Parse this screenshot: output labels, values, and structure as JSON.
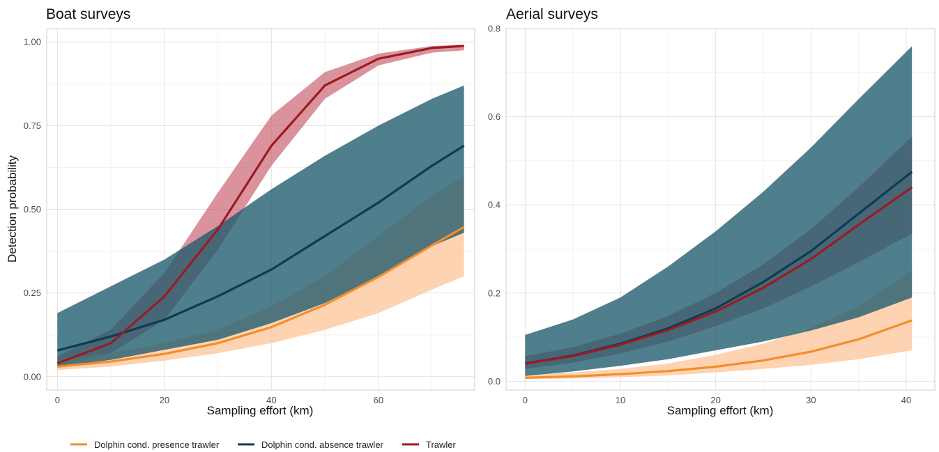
{
  "chart_data": [
    {
      "type": "line",
      "title": "Boat surveys",
      "xlabel": "Sampling effort (km)",
      "ylabel": "Detection probability",
      "xlim": [
        -2,
        78
      ],
      "ylim": [
        -0.04,
        1.04
      ],
      "xticks": [
        0,
        20,
        40,
        60
      ],
      "xtick_labels": [
        "0",
        "20",
        "40",
        "60"
      ],
      "yticks": [
        0,
        0.25,
        0.5,
        0.75,
        1.0
      ],
      "ytick_labels": [
        "0.00",
        "0.25",
        "0.50",
        "0.75",
        "1.00"
      ],
      "grid": true,
      "x": [
        0,
        10,
        20,
        30,
        40,
        50,
        60,
        70,
        76
      ],
      "series": [
        {
          "name": "Dolphin cond. presence trawler",
          "color": "#f28e2b",
          "ribbon_color": "#fdc9a0",
          "values": [
            0.03,
            0.045,
            0.068,
            0.1,
            0.148,
            0.215,
            0.298,
            0.392,
            0.447
          ],
          "lower": [
            0.02,
            0.03,
            0.048,
            0.07,
            0.1,
            0.14,
            0.19,
            0.26,
            0.3
          ],
          "upper": [
            0.05,
            0.07,
            0.1,
            0.14,
            0.21,
            0.3,
            0.42,
            0.54,
            0.6
          ]
        },
        {
          "name": "Dolphin cond. absence trawler",
          "color": "#0a3d52",
          "ribbon_color": "#1d5a6c",
          "values": [
            0.078,
            0.12,
            0.17,
            0.24,
            0.32,
            0.42,
            0.52,
            0.63,
            0.69
          ],
          "lower": [
            0.03,
            0.05,
            0.08,
            0.11,
            0.16,
            0.22,
            0.3,
            0.39,
            0.43
          ],
          "upper": [
            0.19,
            0.27,
            0.35,
            0.45,
            0.56,
            0.66,
            0.75,
            0.83,
            0.87
          ]
        },
        {
          "name": "Trawler",
          "color": "#9c1a22",
          "ribbon_color": "#c45060",
          "values": [
            0.04,
            0.1,
            0.24,
            0.44,
            0.69,
            0.87,
            0.95,
            0.982,
            0.988
          ],
          "lower": [
            0.03,
            0.07,
            0.17,
            0.38,
            0.63,
            0.83,
            0.93,
            0.968,
            0.975
          ],
          "upper": [
            0.06,
            0.14,
            0.31,
            0.55,
            0.78,
            0.91,
            0.965,
            0.988,
            0.992
          ]
        }
      ]
    },
    {
      "type": "line",
      "title": "Aerial surveys",
      "xlabel": "Sampling effort (km)",
      "ylabel": "",
      "xlim": [
        -2,
        43
      ],
      "ylim": [
        -0.02,
        0.8
      ],
      "xticks": [
        0,
        10,
        20,
        30,
        40
      ],
      "xtick_labels": [
        "0",
        "10",
        "20",
        "30",
        "40"
      ],
      "yticks": [
        0,
        0.2,
        0.4,
        0.6,
        0.8
      ],
      "ytick_labels": [
        "0.0",
        "0.2",
        "0.4",
        "0.6",
        "0.8"
      ],
      "grid": true,
      "x": [
        0,
        5,
        10,
        15,
        20,
        25,
        30,
        35,
        40.6
      ],
      "series": [
        {
          "name": "Dolphin cond. presence trawler",
          "color": "#f28e2b",
          "ribbon_color": "#fdc9a0",
          "values": [
            0.008,
            0.011,
            0.016,
            0.023,
            0.033,
            0.047,
            0.067,
            0.095,
            0.138
          ],
          "lower": [
            0.004,
            0.006,
            0.009,
            0.013,
            0.02,
            0.028,
            0.037,
            0.05,
            0.07
          ],
          "upper": [
            0.015,
            0.02,
            0.028,
            0.04,
            0.06,
            0.085,
            0.12,
            0.17,
            0.25
          ]
        },
        {
          "name": "Dolphin cond. absence trawler",
          "color": "#0a3d52",
          "ribbon_color": "#1d5a6c",
          "values": [
            0.04,
            0.058,
            0.085,
            0.12,
            0.165,
            0.225,
            0.295,
            0.38,
            0.475
          ],
          "lower": [
            0.012,
            0.022,
            0.035,
            0.05,
            0.07,
            0.09,
            0.115,
            0.145,
            0.19
          ],
          "upper": [
            0.105,
            0.14,
            0.19,
            0.26,
            0.34,
            0.43,
            0.53,
            0.64,
            0.76
          ]
        },
        {
          "name": "Trawler",
          "color": "#9c1a22",
          "ribbon_color": "#c45060",
          "values": [
            0.04,
            0.057,
            0.083,
            0.116,
            0.158,
            0.212,
            0.277,
            0.355,
            0.44
          ],
          "lower": [
            0.028,
            0.042,
            0.063,
            0.09,
            0.125,
            0.165,
            0.215,
            0.27,
            0.335
          ],
          "upper": [
            0.057,
            0.077,
            0.108,
            0.148,
            0.2,
            0.265,
            0.345,
            0.44,
            0.555
          ]
        }
      ]
    }
  ],
  "legend": {
    "items": [
      {
        "label": "Dolphin cond. presence trawler",
        "color": "#f28e2b"
      },
      {
        "label": "Dolphin cond. absence trawler",
        "color": "#0a3d52"
      },
      {
        "label": "Trawler",
        "color": "#9c1a22"
      }
    ]
  }
}
